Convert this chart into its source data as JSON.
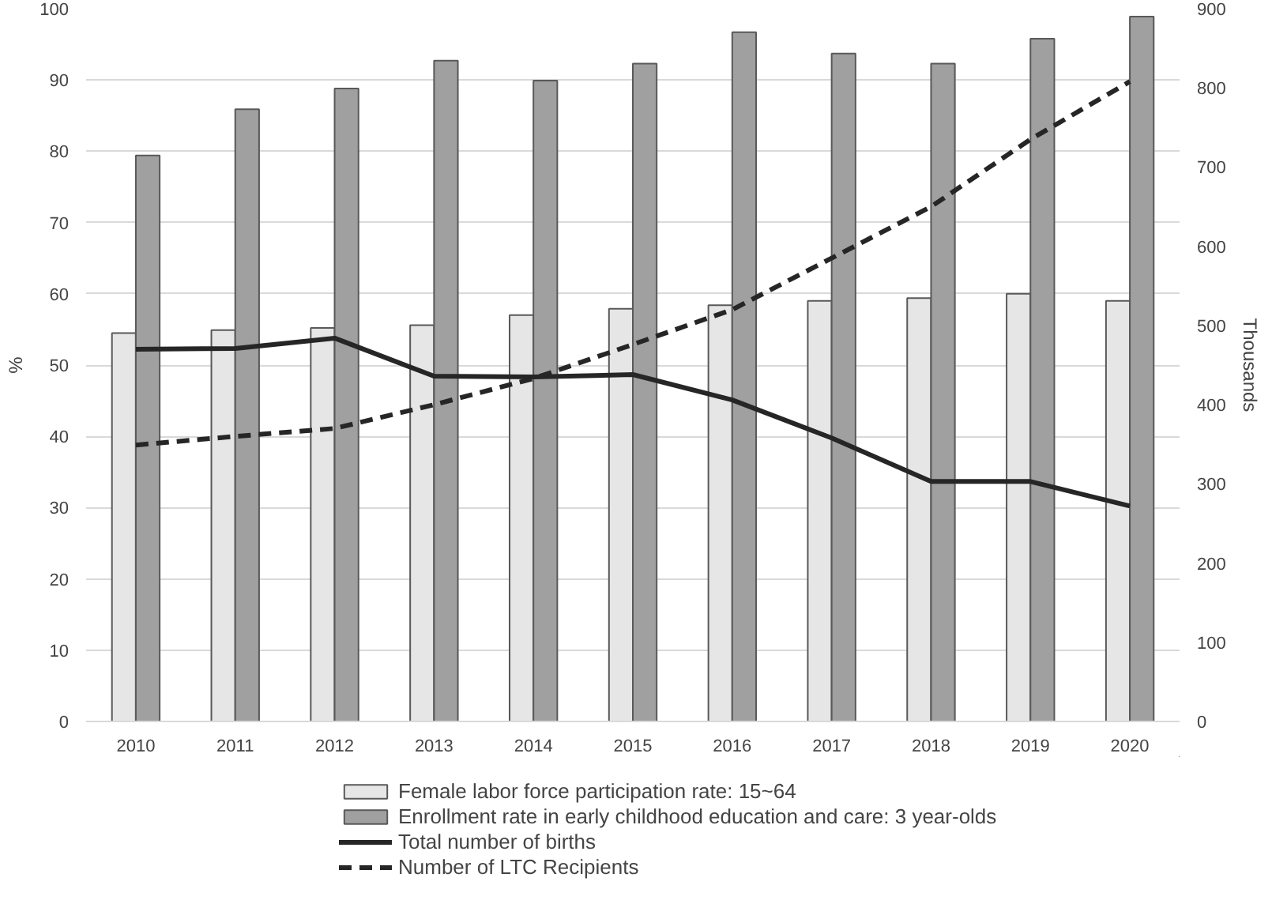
{
  "chart_data": {
    "type": "bar",
    "ylabel": "%",
    "y2label": "Thousands",
    "categories": [
      "2010",
      "2011",
      "2012",
      "2013",
      "2014",
      "2015",
      "2016",
      "2017",
      "2018",
      "2019",
      "2020"
    ],
    "series": [
      {
        "name": "Female labor force participation rate: 15~64",
        "color": "#e6e6e6",
        "values": [
          54.5,
          54.9,
          55.2,
          55.6,
          57.0,
          57.9,
          58.4,
          59.0,
          59.4,
          60.0,
          59.0
        ]
      },
      {
        "name": "Enrollment rate in early childhood education and care: 3 year-olds",
        "color": "#a0a0a0",
        "values": [
          79.4,
          85.9,
          88.8,
          92.7,
          89.9,
          92.3,
          96.7,
          93.7,
          92.3,
          95.8,
          98.9
        ]
      },
      {
        "name": "Total number of births",
        "type": "line",
        "axis": "y2",
        "line_style": "solid",
        "color": "#262626",
        "values": [
          470,
          471,
          484,
          436,
          435,
          438,
          406,
          358,
          303,
          303,
          272
        ]
      },
      {
        "name": "Number of LTC Recipients",
        "type": "line",
        "axis": "y2",
        "line_style": "dashed",
        "color": "#262626",
        "values": [
          349,
          360,
          370,
          400,
          433,
          476,
          520,
          585,
          650,
          735,
          808
        ]
      }
    ],
    "ylim": [
      0,
      100
    ],
    "yticks": [
      0,
      10,
      20,
      30,
      40,
      50,
      60,
      70,
      80,
      90,
      100
    ],
    "y2lim": [
      0,
      900
    ],
    "y2ticks": [
      0,
      100,
      200,
      300,
      400,
      500,
      600,
      700,
      800,
      900
    ],
    "grid": "y",
    "legend": "bottom"
  }
}
